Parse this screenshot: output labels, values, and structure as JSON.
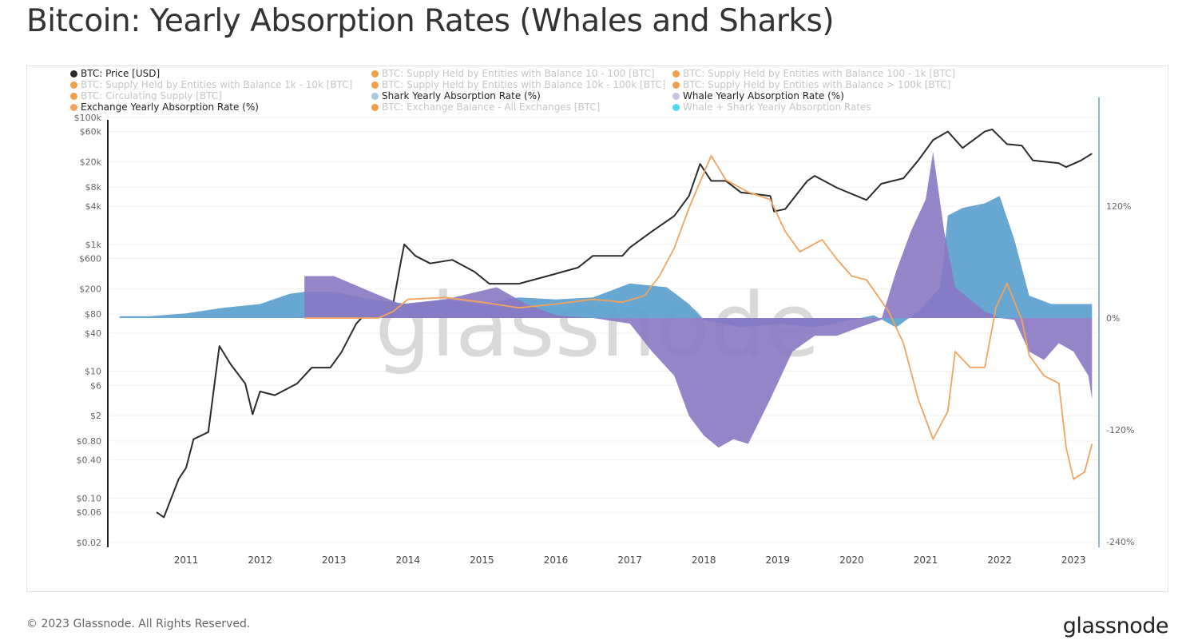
{
  "title": "Bitcoin: Yearly Absorption Rates (Whales and Sharks)",
  "footer": "© 2023 Glassnode. All Rights Reserved.",
  "brand": "glassnode",
  "watermark": "glassnode",
  "legend": [
    {
      "label": "BTC: Price [USD]",
      "color": "#2b2b2b",
      "active": true
    },
    {
      "label": "BTC: Supply Held by Entities with Balance 10 - 100 [BTC]",
      "color": "#f0a04b",
      "active": false
    },
    {
      "label": "BTC: Supply Held by Entities with Balance 100 - 1k [BTC]",
      "color": "#f0a04b",
      "active": false
    },
    {
      "label": "BTC: Supply Held by Entities with Balance 1k - 10k [BTC]",
      "color": "#f0a04b",
      "active": false
    },
    {
      "label": "BTC: Supply Held by Entities with Balance 10k - 100k [BTC]",
      "color": "#f0a04b",
      "active": false
    },
    {
      "label": "BTC: Supply Held by Entities with Balance > 100k [BTC]",
      "color": "#f0a04b",
      "active": false
    },
    {
      "label": "BTC: Circulating Supply [BTC]",
      "color": "#f0a04b",
      "active": false
    },
    {
      "label": "Shark Yearly Absorption Rate (%)",
      "color": "#a9c9df",
      "active": true
    },
    {
      "label": "Whale Yearly Absorption Rate (%)",
      "color": "#c9c3e3",
      "active": true
    },
    {
      "label": "Exchange Yearly Absorption Rate (%)",
      "color": "#f5a35c",
      "active": true
    },
    {
      "label": "BTC: Exchange Balance - All Exchanges [BTC]",
      "color": "#f0a04b",
      "active": false
    },
    {
      "label": "Whale + Shark Yearly Absorption Rates",
      "color": "#4dd9ef",
      "active": false
    }
  ],
  "chart_data": {
    "type": "line",
    "title": "Bitcoin: Yearly Absorption Rates (Whales and Sharks)",
    "x_ticks": [
      "2011",
      "2012",
      "2013",
      "2014",
      "2015",
      "2016",
      "2017",
      "2018",
      "2019",
      "2020",
      "2021",
      "2022",
      "2023"
    ],
    "y_left": {
      "scale": "log",
      "range": [
        0.02,
        100000
      ],
      "ticks": [
        "$100k",
        "$60k",
        "$20k",
        "$8k",
        "$4k",
        "$1k",
        "$600",
        "$200",
        "$80",
        "$40",
        "$10",
        "$6",
        "$2",
        "$0.80",
        "$0.40",
        "$0.10",
        "$0.06",
        "$0.02"
      ],
      "tick_values": [
        100000,
        60000,
        20000,
        8000,
        4000,
        1000,
        600,
        200,
        80,
        40,
        10,
        6,
        2,
        0.8,
        0.4,
        0.1,
        0.06,
        0.02
      ]
    },
    "y_right": {
      "scale": "linear",
      "range": [
        -240,
        240
      ],
      "ticks": [
        "120%",
        "0%",
        "-120%",
        "-240%"
      ],
      "tick_values": [
        120,
        0,
        -120,
        -240
      ]
    },
    "grid": true,
    "legend_position": "top",
    "series": [
      {
        "name": "BTC: Price [USD]",
        "axis": "left",
        "kind": "line",
        "color": "#2b2b2b",
        "x": [
          2010.6,
          2010.7,
          2010.9,
          2011.0,
          2011.1,
          2011.3,
          2011.45,
          2011.6,
          2011.8,
          2011.9,
          2012.0,
          2012.2,
          2012.5,
          2012.7,
          2012.95,
          2013.1,
          2013.3,
          2013.5,
          2013.8,
          2013.9,
          2013.95,
          2014.1,
          2014.3,
          2014.6,
          2014.9,
          2015.1,
          2015.5,
          2015.9,
          2016.3,
          2016.5,
          2016.9,
          2017.0,
          2017.3,
          2017.6,
          2017.8,
          2017.95,
          2018.1,
          2018.3,
          2018.5,
          2018.9,
          2018.95,
          2019.1,
          2019.4,
          2019.5,
          2019.8,
          2020.2,
          2020.4,
          2020.7,
          2020.9,
          2021.1,
          2021.3,
          2021.5,
          2021.8,
          2021.9,
          2022.1,
          2022.3,
          2022.45,
          2022.8,
          2022.9,
          2023.1,
          2023.25
        ],
        "y": [
          0.06,
          0.05,
          0.2,
          0.3,
          0.85,
          1.1,
          25,
          13,
          6.4,
          2.1,
          4.8,
          4.2,
          6.4,
          11.4,
          11.4,
          20,
          56,
          100,
          116,
          500,
          1000,
          660,
          500,
          570,
          370,
          240,
          240,
          320,
          430,
          660,
          660,
          890,
          1600,
          2800,
          5800,
          18500,
          10000,
          10000,
          6600,
          5800,
          3300,
          3600,
          10000,
          12000,
          7800,
          5000,
          9000,
          11000,
          21000,
          44000,
          60000,
          33000,
          60000,
          65000,
          38000,
          36000,
          21000,
          19000,
          16500,
          21000,
          27000
        ]
      },
      {
        "name": "Shark Yearly Absorption Rate (%)",
        "axis": "right",
        "kind": "area",
        "color": "#5fa2cf",
        "x": [
          2010.1,
          2010.5,
          2011.0,
          2011.5,
          2012.0,
          2012.4,
          2012.6,
          2013.0,
          2013.5,
          2014.0,
          2014.5,
          2015.0,
          2015.5,
          2016.0,
          2016.5,
          2017.0,
          2017.5,
          2017.8,
          2018.0,
          2018.5,
          2019.0,
          2019.5,
          2020.0,
          2020.3,
          2020.6,
          2020.9,
          2021.2,
          2021.3,
          2021.5,
          2021.8,
          2022.0,
          2022.2,
          2022.4,
          2022.7,
          2023.0,
          2023.25
        ],
        "y": [
          2,
          2,
          5,
          11,
          15,
          26,
          28,
          28,
          20,
          15,
          20,
          15,
          22,
          20,
          22,
          37,
          33,
          15,
          -2,
          -10,
          -6,
          -10,
          -2,
          3,
          -10,
          7,
          33,
          110,
          118,
          123,
          131,
          84,
          24,
          15,
          15,
          15
        ]
      },
      {
        "name": "Whale Yearly Absorption Rate (%)",
        "axis": "right",
        "kind": "area",
        "color": "#8878c3",
        "x": [
          2012.6,
          2013.0,
          2013.5,
          2013.9,
          2014.5,
          2015.2,
          2015.6,
          2016.0,
          2016.5,
          2017.0,
          2017.3,
          2017.6,
          2017.8,
          2018.0,
          2018.2,
          2018.4,
          2018.6,
          2018.9,
          2019.2,
          2019.5,
          2019.8,
          2020.1,
          2020.4,
          2020.6,
          2020.8,
          2021.0,
          2021.1,
          2021.25,
          2021.4,
          2021.8,
          2022.0,
          2022.2,
          2022.4,
          2022.6,
          2022.8,
          2023.0,
          2023.2,
          2023.25
        ],
        "y": [
          45,
          45,
          28,
          15,
          20,
          33,
          15,
          3,
          0,
          -6,
          -36,
          -62,
          -105,
          -126,
          -139,
          -130,
          -135,
          -87,
          -36,
          -19,
          -19,
          -10,
          -2,
          50,
          93,
          127,
          178,
          93,
          33,
          7,
          0,
          -2,
          -36,
          -45,
          -27,
          -36,
          -62,
          -87
        ]
      },
      {
        "name": "Exchange Yearly Absorption Rate (%)",
        "axis": "right",
        "kind": "line",
        "color": "#f5a35c",
        "x": [
          2012.6,
          2013.6,
          2013.8,
          2014.0,
          2014.5,
          2015.0,
          2015.5,
          2016.0,
          2016.5,
          2016.9,
          2017.2,
          2017.4,
          2017.6,
          2017.8,
          2018.1,
          2018.3,
          2018.6,
          2018.9,
          2019.1,
          2019.3,
          2019.6,
          2019.8,
          2020.0,
          2020.2,
          2020.5,
          2020.7,
          2020.9,
          2021.1,
          2021.3,
          2021.4,
          2021.6,
          2021.8,
          2021.95,
          2022.1,
          2022.3,
          2022.4,
          2022.6,
          2022.8,
          2022.9,
          2023.0,
          2023.15,
          2023.25
        ],
        "y": [
          0,
          0,
          7,
          20,
          22,
          17,
          11,
          15,
          20,
          17,
          24,
          45,
          75,
          118,
          174,
          148,
          135,
          127,
          93,
          71,
          84,
          63,
          45,
          41,
          7,
          -27,
          -87,
          -130,
          -100,
          -36,
          -53,
          -53,
          11,
          37,
          -2,
          -40,
          -62,
          -70,
          -139,
          -173,
          -165,
          -135
        ]
      }
    ]
  }
}
